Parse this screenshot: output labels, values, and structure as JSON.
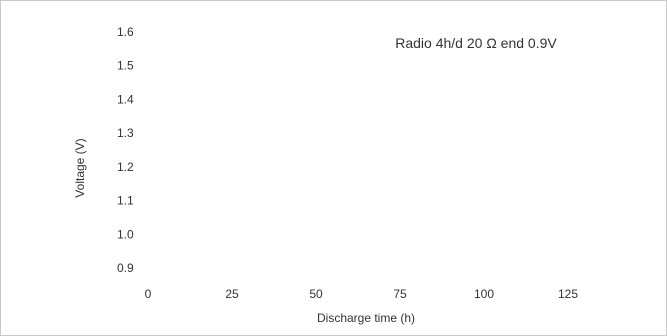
{
  "chart_data": {
    "type": "line",
    "title": "Radio 4h/d 20 Ω end 0.9V",
    "xlabel": "Discharge time (h)",
    "ylabel": "Voltage (V)",
    "xlim": [
      0,
      125
    ],
    "ylim": [
      0.9,
      1.6
    ],
    "xticks": [
      0,
      25,
      50,
      75,
      100,
      125
    ],
    "xtick_labels": [
      "0",
      "25",
      "50",
      "75",
      "100",
      "125"
    ],
    "yticks": [
      1.6,
      1.5,
      1.4,
      1.3,
      1.2,
      1.1,
      1.0,
      0.9
    ],
    "ytick_labels": [
      "1.6",
      "1.5",
      "1.4",
      "1.3",
      "1.2",
      "1.1",
      "1.0",
      "0.9"
    ],
    "grid": false,
    "series": []
  }
}
